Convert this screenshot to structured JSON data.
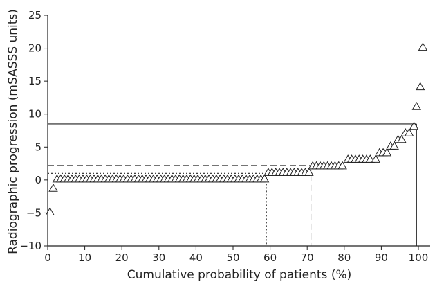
{
  "chart_data": {
    "type": "scatter",
    "marker": "open-triangle",
    "xlabel": "Cumulative probability of patients (%)",
    "ylabel": "Radiographic progression (mSASSS units)",
    "xlim": [
      0,
      102
    ],
    "ylim": [
      -10,
      25
    ],
    "xticks": [
      0,
      10,
      20,
      30,
      40,
      50,
      60,
      70,
      80,
      90,
      100
    ],
    "yticks": [
      -10,
      -5,
      0,
      5,
      10,
      15,
      20,
      25
    ],
    "grid": false,
    "series": [
      {
        "points": [
          [
            0.6,
            -5
          ],
          [
            1.5,
            -1.4
          ],
          [
            2.5,
            0
          ],
          [
            3.5,
            0
          ],
          [
            4.5,
            0
          ],
          [
            5.5,
            0
          ],
          [
            6.5,
            0
          ],
          [
            7.5,
            0
          ],
          [
            8.5,
            0
          ],
          [
            9.5,
            0
          ],
          [
            10.5,
            0
          ],
          [
            11.5,
            0
          ],
          [
            12.5,
            0
          ],
          [
            13.5,
            0
          ],
          [
            14.5,
            0
          ],
          [
            15.5,
            0
          ],
          [
            16.5,
            0
          ],
          [
            17.5,
            0
          ],
          [
            18.5,
            0
          ],
          [
            19.5,
            0
          ],
          [
            20.5,
            0
          ],
          [
            21.5,
            0
          ],
          [
            22.5,
            0
          ],
          [
            23.5,
            0
          ],
          [
            24.5,
            0
          ],
          [
            25.5,
            0
          ],
          [
            26.5,
            0
          ],
          [
            27.5,
            0
          ],
          [
            28.5,
            0
          ],
          [
            29.5,
            0
          ],
          [
            30.5,
            0
          ],
          [
            31.5,
            0
          ],
          [
            32.5,
            0
          ],
          [
            33.5,
            0
          ],
          [
            34.5,
            0
          ],
          [
            35.5,
            0
          ],
          [
            36.5,
            0
          ],
          [
            37.5,
            0
          ],
          [
            38.5,
            0
          ],
          [
            39.5,
            0
          ],
          [
            40.5,
            0
          ],
          [
            41.5,
            0
          ],
          [
            42.5,
            0
          ],
          [
            43.5,
            0
          ],
          [
            44.5,
            0
          ],
          [
            45.5,
            0
          ],
          [
            46.5,
            0
          ],
          [
            47.5,
            0
          ],
          [
            48.5,
            0
          ],
          [
            49.5,
            0
          ],
          [
            50.5,
            0
          ],
          [
            51.5,
            0
          ],
          [
            52.5,
            0
          ],
          [
            53.5,
            0
          ],
          [
            54.5,
            0
          ],
          [
            55.5,
            0
          ],
          [
            56.5,
            0
          ],
          [
            57.5,
            0
          ],
          [
            58.5,
            0
          ],
          [
            59.5,
            1
          ],
          [
            60.5,
            1
          ],
          [
            61.5,
            1
          ],
          [
            62.5,
            1
          ],
          [
            63.5,
            1
          ],
          [
            64.5,
            1
          ],
          [
            65.5,
            1
          ],
          [
            66.5,
            1
          ],
          [
            67.5,
            1
          ],
          [
            68.5,
            1
          ],
          [
            69.5,
            1
          ],
          [
            70.5,
            1
          ],
          [
            71.5,
            2
          ],
          [
            72.5,
            2
          ],
          [
            73.5,
            2
          ],
          [
            74.5,
            2
          ],
          [
            75.5,
            2
          ],
          [
            76.5,
            2
          ],
          [
            77.5,
            2
          ],
          [
            78.5,
            2
          ],
          [
            79.5,
            2
          ],
          [
            81,
            3
          ],
          [
            82,
            3
          ],
          [
            83,
            3
          ],
          [
            84,
            3
          ],
          [
            85,
            3
          ],
          [
            86,
            3
          ],
          [
            87,
            3
          ],
          [
            88.5,
            3
          ],
          [
            89.5,
            4
          ],
          [
            90.5,
            4
          ],
          [
            91.5,
            4
          ],
          [
            92.5,
            5
          ],
          [
            93.5,
            5
          ],
          [
            94.5,
            6
          ],
          [
            95.5,
            6
          ],
          [
            96.5,
            7
          ],
          [
            97.5,
            7
          ],
          [
            98.8,
            8
          ],
          [
            99.5,
            11
          ],
          [
            100.5,
            14
          ],
          [
            101.2,
            20
          ]
        ]
      }
    ],
    "reference_lines": [
      {
        "style": "solid",
        "x": 99.5,
        "y": 8.5
      },
      {
        "style": "dashed",
        "x": 71,
        "y": 2.2
      },
      {
        "style": "dotted",
        "x": 59,
        "y": 1
      }
    ]
  }
}
